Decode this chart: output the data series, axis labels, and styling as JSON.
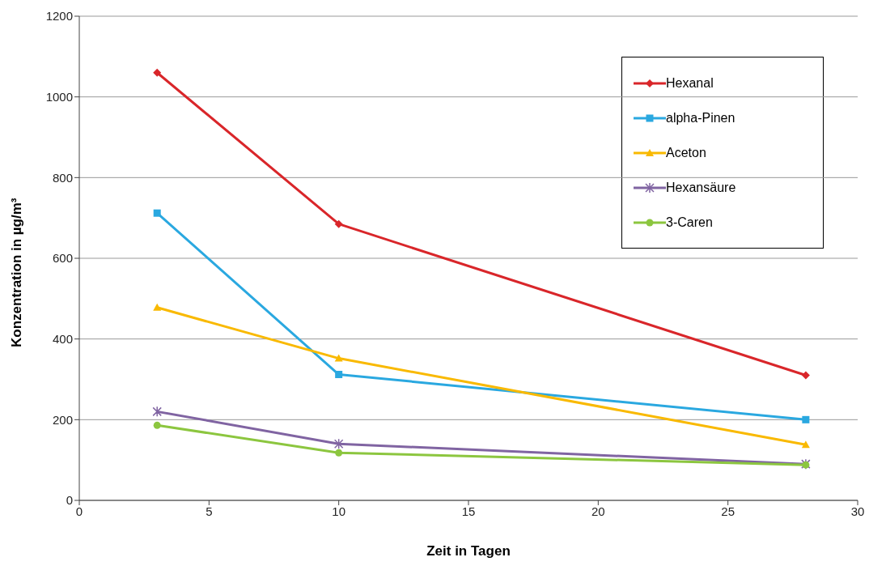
{
  "chart_data": {
    "type": "line",
    "xlabel": "Zeit in Tagen",
    "ylabel": "Konzentration in µg/m³",
    "x": [
      3,
      10,
      28
    ],
    "series": [
      {
        "name": "Hexanal",
        "color": "#d9262a",
        "marker": "diamond",
        "values": [
          1060,
          685,
          310
        ]
      },
      {
        "name": "alpha-Pinen",
        "color": "#2aa8e0",
        "marker": "square",
        "values": [
          712,
          312,
          200
        ]
      },
      {
        "name": "Aceton",
        "color": "#f9b900",
        "marker": "triangle",
        "values": [
          478,
          352,
          138
        ]
      },
      {
        "name": "Hexansäure",
        "color": "#8064a2",
        "marker": "cross",
        "values": [
          220,
          140,
          90
        ]
      },
      {
        "name": "3-Caren",
        "color": "#8cc63f",
        "marker": "circle",
        "values": [
          186,
          118,
          88
        ]
      }
    ],
    "xlim": [
      0,
      30
    ],
    "xticks": [
      0,
      5,
      10,
      15,
      20,
      25,
      30
    ],
    "ylim": [
      0,
      1200
    ],
    "yticks": [
      0,
      200,
      400,
      600,
      800,
      1000,
      1200
    ],
    "grid": "y",
    "legend": "top right",
    "line_style": "solid"
  }
}
